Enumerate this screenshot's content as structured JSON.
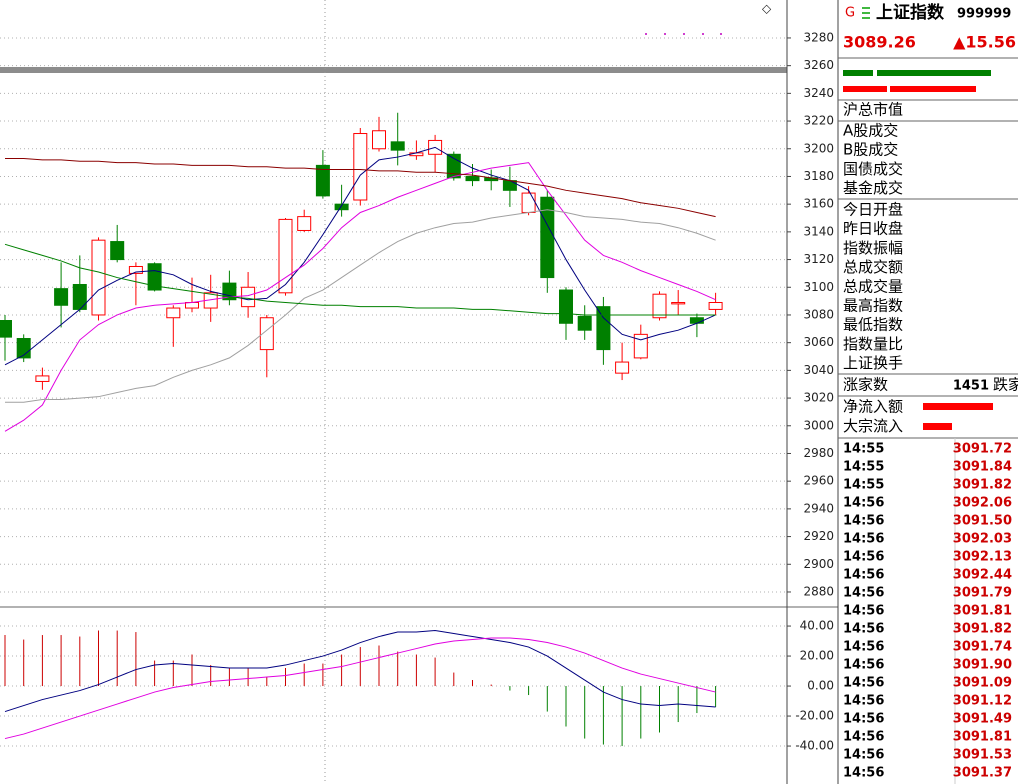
{
  "chart_data": [
    {
      "type": "candlestick",
      "open": [
        3076,
        3063,
        3032,
        3099,
        3102,
        3080,
        3133,
        3110,
        3117,
        3078,
        3085,
        3085,
        3103,
        3086,
        3055,
        3096,
        3141,
        3188,
        3160,
        3163,
        3200,
        3205,
        3195,
        3196,
        3196,
        3180,
        3179,
        3177,
        3154,
        3165,
        3098,
        3079,
        3086,
        3038,
        3049,
        3078,
        3088,
        3078,
        3084
      ],
      "high": [
        3080,
        3066,
        3042,
        3118,
        3123,
        3136,
        3145,
        3118,
        3118,
        3087,
        3107,
        3109,
        3112,
        3111,
        3080,
        3150,
        3156,
        3199,
        3174,
        3215,
        3223,
        3226,
        3206,
        3210,
        3198,
        3189,
        3185,
        3187,
        3173,
        3170,
        3100,
        3087,
        3093,
        3060,
        3073,
        3097,
        3098,
        3081,
        3096
      ],
      "low": [
        3047,
        3046,
        3026,
        3071,
        3082,
        3076,
        3118,
        3087,
        3097,
        3057,
        3082,
        3075,
        3087,
        3078,
        3035,
        3094,
        3140,
        3164,
        3151,
        3159,
        3198,
        3188,
        3192,
        3183,
        3177,
        3173,
        3170,
        3158,
        3152,
        3096,
        3062,
        3062,
        3044,
        3033,
        3048,
        3076,
        3080,
        3064,
        3080
      ],
      "close": [
        3064,
        3049,
        3036,
        3087,
        3084,
        3134,
        3120,
        3115,
        3098,
        3085,
        3089,
        3096,
        3091,
        3100,
        3078,
        3149,
        3151,
        3166,
        3156,
        3211,
        3213,
        3199,
        3197,
        3206,
        3179,
        3177,
        3177,
        3170,
        3168,
        3107,
        3074,
        3069,
        3055,
        3046,
        3066,
        3095,
        3089,
        3074,
        3089
      ],
      "up_color": "#ff0000",
      "down_color": "#008000",
      "series": [
        {
          "color": "#000080",
          "values": [
            3044,
            3051,
            3062,
            3073,
            3084,
            3098,
            3105,
            3111,
            3112,
            3109,
            3102,
            3097,
            3094,
            3091,
            3092,
            3102,
            3118,
            3138,
            3159,
            3181,
            3192,
            3194,
            3197,
            3201,
            3193,
            3186,
            3181,
            3177,
            3170,
            3145,
            3120,
            3098,
            3078,
            3066,
            3062,
            3066,
            3069,
            3074,
            3080
          ]
        },
        {
          "color": "#e000e0",
          "values": [
            2996,
            3004,
            3015,
            3040,
            3062,
            3073,
            3080,
            3085,
            3087,
            3088,
            3089,
            3091,
            3093,
            3094,
            3098,
            3107,
            3116,
            3128,
            3143,
            3154,
            3159,
            3165,
            3170,
            3175,
            3180,
            3183,
            3186,
            3188,
            3190,
            3170,
            3152,
            3134,
            3123,
            3118,
            3112,
            3107,
            3102,
            3097,
            3091
          ]
        },
        {
          "color": "#a0a0a0",
          "values": [
            3017,
            3017,
            3019,
            3019,
            3020,
            3021,
            3024,
            3027,
            3029,
            3035,
            3040,
            3044,
            3049,
            3058,
            3069,
            3080,
            3092,
            3098,
            3107,
            3116,
            3125,
            3133,
            3139,
            3143,
            3146,
            3147,
            3150,
            3152,
            3154,
            3156,
            3154,
            3151,
            3150,
            3149,
            3147,
            3146,
            3143,
            3139,
            3134
          ]
        },
        {
          "color": "#008000",
          "values": [
            3131,
            3127,
            3123,
            3119,
            3114,
            3111,
            3107,
            3104,
            3101,
            3099,
            3097,
            3095,
            3093,
            3092,
            3090,
            3089,
            3088,
            3087,
            3087,
            3086,
            3086,
            3086,
            3085,
            3085,
            3085,
            3084,
            3084,
            3083,
            3082,
            3081,
            3081,
            3080,
            3080,
            3080,
            3080,
            3080,
            3080,
            3080,
            3080
          ]
        },
        {
          "color": "#8b0000",
          "values": [
            3193,
            3193,
            3192,
            3192,
            3191,
            3191,
            3190,
            3190,
            3189,
            3189,
            3188,
            3188,
            3188,
            3187,
            3187,
            3186,
            3186,
            3185,
            3185,
            3185,
            3184,
            3184,
            3183,
            3183,
            3182,
            3181,
            3179,
            3177,
            3175,
            3173,
            3170,
            3168,
            3166,
            3164,
            3161,
            3159,
            3157,
            3154,
            3151
          ]
        }
      ],
      "ylim": [
        2870.6,
        3307.4
      ],
      "yticks": [
        3280,
        3260,
        3240,
        3220,
        3200,
        3180,
        3160,
        3140,
        3120,
        3100,
        3080,
        3060,
        3040,
        3020,
        3000,
        2980,
        2960,
        2940,
        2920,
        2900,
        2880
      ],
      "grid": true
    },
    {
      "type": "bar",
      "values": [
        34,
        31,
        34,
        34,
        33,
        37,
        37,
        36,
        17,
        17,
        21,
        14,
        12,
        12,
        6,
        12,
        15,
        15,
        21,
        26,
        27,
        23,
        21,
        19,
        9,
        4,
        1,
        -3,
        -6,
        -17,
        -27,
        -35,
        -39,
        -40,
        -35,
        -31,
        -24,
        -18,
        -14
      ],
      "up_color": "#cc0000",
      "down_color": "#008000",
      "series": [
        {
          "color": "#000080",
          "values": [
            -17,
            -13,
            -9,
            -6,
            -3,
            1,
            6,
            11,
            14,
            15,
            14,
            13,
            12,
            12,
            12,
            14,
            17,
            20,
            24,
            29,
            33,
            36,
            36,
            37,
            35,
            33,
            31,
            29,
            26,
            20,
            12,
            4,
            -4,
            -9,
            -12,
            -13,
            -12,
            -13,
            -14
          ]
        },
        {
          "color": "#e000e0",
          "values": [
            -35,
            -32,
            -28,
            -24,
            -20,
            -16,
            -12,
            -8,
            -4,
            -1,
            1,
            3,
            4,
            5,
            6,
            7,
            9,
            11,
            13,
            16,
            19,
            22,
            25,
            28,
            30,
            31,
            32,
            32,
            31,
            29,
            26,
            22,
            17,
            12,
            8,
            5,
            2,
            -1,
            -4
          ]
        }
      ],
      "ylim": [
        -65.3,
        52.7
      ],
      "yticks": [
        {
          "value": 40,
          "label": "40.00"
        },
        {
          "value": 20,
          "label": "20.00"
        },
        {
          "value": 0,
          "label": "0.00"
        },
        {
          "value": -20,
          "label": "-20.00"
        },
        {
          "value": -40,
          "label": "-40.00"
        }
      ],
      "grid": true
    }
  ],
  "panel": {
    "flag": "G",
    "index_name": "上证指数",
    "code": "999999",
    "price": "3089.26",
    "change": "▲15.56",
    "fields": [
      "沪总市值",
      "A股成交",
      "B股成交",
      "国债成交",
      "基金成交",
      "今日开盘",
      "昨日收盘",
      "指数振幅",
      "总成交额",
      "总成交量",
      "最高指数",
      "最低指数",
      "指数量比",
      "上证换手"
    ],
    "advancers_label": "涨家数",
    "advancers": 1451,
    "decliners_label": "跌家",
    "flows": [
      "净流入额",
      "大宗流入"
    ],
    "ticks": [
      {
        "time": "14:55",
        "price": "3091.72"
      },
      {
        "time": "14:55",
        "price": "3091.84"
      },
      {
        "time": "14:55",
        "price": "3091.82"
      },
      {
        "time": "14:56",
        "price": "3092.06"
      },
      {
        "time": "14:56",
        "price": "3091.50"
      },
      {
        "time": "14:56",
        "price": "3092.03"
      },
      {
        "time": "14:56",
        "price": "3092.13"
      },
      {
        "time": "14:56",
        "price": "3092.44"
      },
      {
        "time": "14:56",
        "price": "3091.79"
      },
      {
        "time": "14:56",
        "price": "3091.81"
      },
      {
        "time": "14:56",
        "price": "3091.82"
      },
      {
        "time": "14:56",
        "price": "3091.74"
      },
      {
        "time": "14:56",
        "price": "3091.90"
      },
      {
        "time": "14:56",
        "price": "3091.09"
      },
      {
        "time": "14:56",
        "price": "3091.12"
      },
      {
        "time": "14:56",
        "price": "3091.49"
      },
      {
        "time": "14:56",
        "price": "3091.81"
      },
      {
        "time": "14:56",
        "price": "3091.53"
      },
      {
        "time": "14:56",
        "price": "3091.37"
      }
    ]
  }
}
